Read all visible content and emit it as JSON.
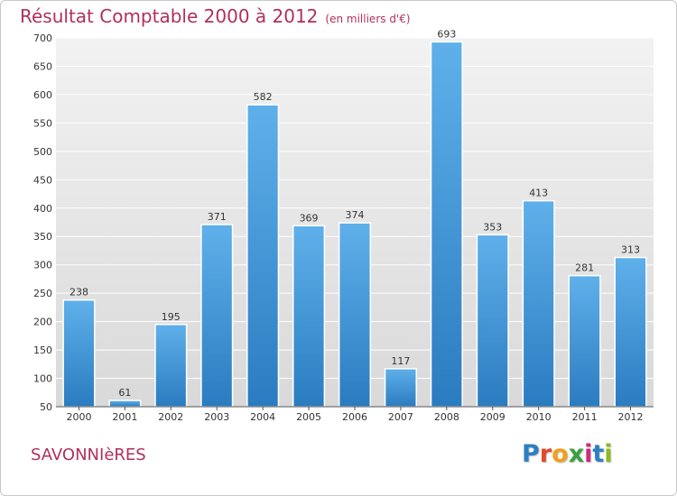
{
  "chart_data": {
    "type": "bar",
    "title": "Résultat Comptable 2000 à 2012",
    "subtitle": "(en milliers d'€)",
    "categories": [
      "2000",
      "2001",
      "2002",
      "2003",
      "2004",
      "2005",
      "2006",
      "2007",
      "2008",
      "2009",
      "2010",
      "2011",
      "2012"
    ],
    "values": [
      238,
      61,
      195,
      371,
      582,
      369,
      374,
      117,
      693,
      353,
      413,
      281,
      313
    ],
    "ylim": [
      50,
      700
    ],
    "yticks": [
      50,
      100,
      150,
      200,
      250,
      300,
      350,
      400,
      450,
      500,
      550,
      600,
      650,
      700
    ],
    "grid": true,
    "bar_color": "#3b8fd6"
  },
  "location": "SAVONNIèRES",
  "logo": {
    "letters": [
      "P",
      "r",
      "o",
      "x",
      "i",
      "t",
      "i"
    ],
    "colors": [
      "#2e7fc2",
      "#e04a2c",
      "#f0a020",
      "#3aa040",
      "#d02a7a",
      "#2e7fc2",
      "#90b820"
    ]
  }
}
